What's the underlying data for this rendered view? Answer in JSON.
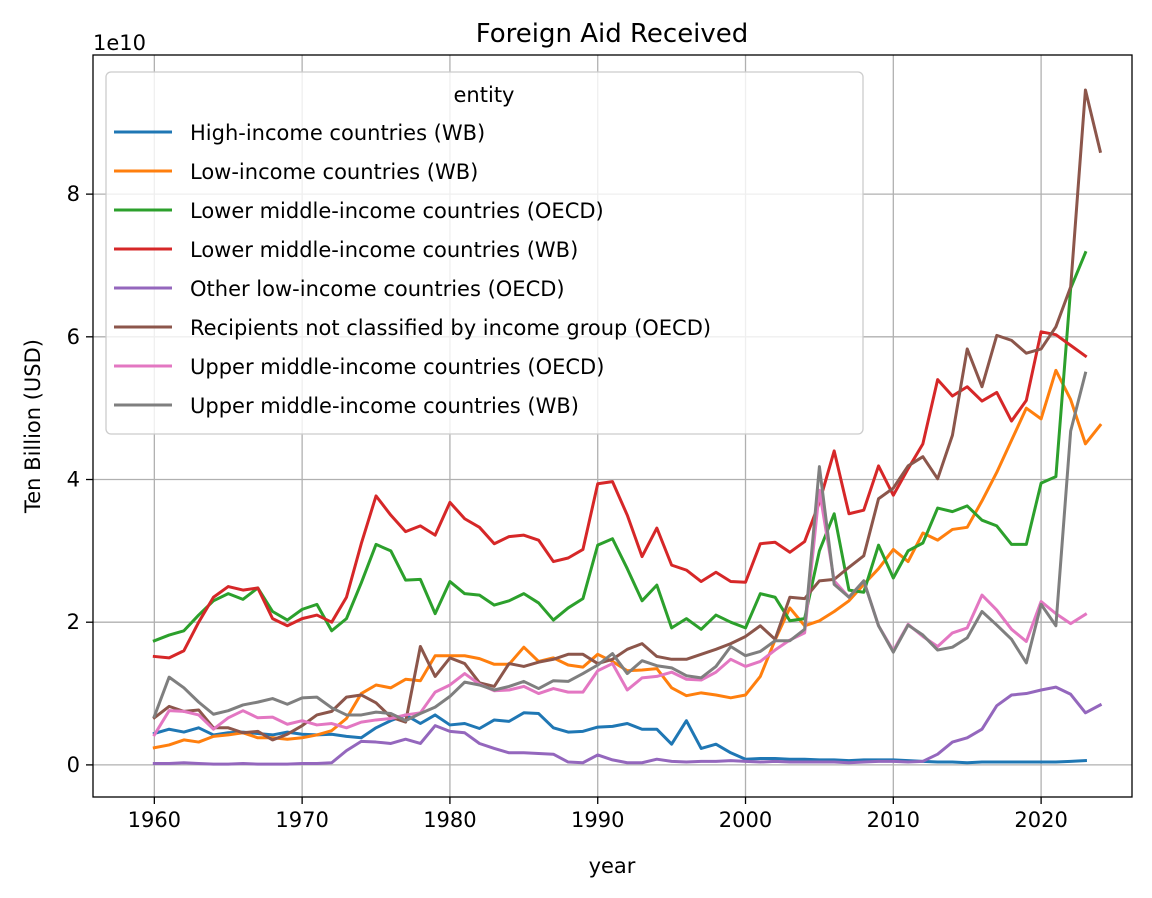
{
  "chart_data": {
    "type": "line",
    "title": "Foreign Aid Received",
    "xlabel": "year",
    "ylabel": "Ten Billion (USD)",
    "offset_label": "1e10",
    "xlim": [
      1955.85,
      2026.15
    ],
    "ylim": [
      -0.45,
      9.95
    ],
    "xticks": [
      1960,
      1970,
      1980,
      1990,
      2000,
      2010,
      2020
    ],
    "yticks": [
      0,
      2,
      4,
      6,
      8
    ],
    "grid": true,
    "legend": {
      "title": "entity",
      "placement": "upper-left"
    },
    "x_start": 1960,
    "series": [
      {
        "name": "High-income countries (WB)",
        "color": "#1f77b4",
        "values": [
          0.44,
          0.5,
          0.46,
          0.52,
          0.42,
          0.45,
          0.46,
          0.44,
          0.42,
          0.46,
          0.43,
          0.42,
          0.43,
          0.4,
          0.38,
          0.52,
          0.62,
          0.7,
          0.58,
          0.7,
          0.56,
          0.58,
          0.51,
          0.63,
          0.61,
          0.73,
          0.72,
          0.52,
          0.46,
          0.47,
          0.53,
          0.54,
          0.58,
          0.5,
          0.5,
          0.29,
          0.62,
          0.23,
          0.29,
          0.17,
          0.08,
          0.09,
          0.09,
          0.08,
          0.08,
          0.07,
          0.07,
          0.06,
          0.07,
          0.07,
          0.07,
          0.06,
          0.05,
          0.04,
          0.04,
          0.03,
          0.04,
          0.04,
          0.04,
          0.04,
          0.04,
          0.04,
          0.05,
          0.06
        ]
      },
      {
        "name": "Low-income countries (WB)",
        "color": "#ff7f0e",
        "values": [
          0.24,
          0.28,
          0.35,
          0.32,
          0.4,
          0.42,
          0.45,
          0.38,
          0.38,
          0.36,
          0.38,
          0.42,
          0.48,
          0.65,
          1.0,
          1.12,
          1.08,
          1.2,
          1.18,
          1.53,
          1.53,
          1.53,
          1.49,
          1.41,
          1.41,
          1.65,
          1.45,
          1.5,
          1.4,
          1.37,
          1.55,
          1.45,
          1.32,
          1.33,
          1.35,
          1.08,
          0.97,
          1.01,
          0.98,
          0.94,
          0.98,
          1.24,
          1.75,
          2.2,
          1.95,
          2.02,
          2.15,
          2.3,
          2.53,
          2.75,
          3.02,
          2.85,
          3.25,
          3.15,
          3.3,
          3.33,
          3.7,
          4.1,
          4.55,
          5.0,
          4.85,
          5.53,
          5.12,
          4.5,
          4.76
        ]
      },
      {
        "name": "Lower middle-income countries (OECD)",
        "color": "#2ca02c",
        "values": [
          1.74,
          1.82,
          1.88,
          2.1,
          2.3,
          2.4,
          2.32,
          2.48,
          2.15,
          2.03,
          2.18,
          2.25,
          1.88,
          2.05,
          2.55,
          3.09,
          3.0,
          2.59,
          2.6,
          2.12,
          2.57,
          2.4,
          2.38,
          2.24,
          2.3,
          2.4,
          2.27,
          2.03,
          2.2,
          2.33,
          3.08,
          3.17,
          2.75,
          2.3,
          2.52,
          1.92,
          2.05,
          1.9,
          2.1,
          2.0,
          1.92,
          2.4,
          2.35,
          2.02,
          2.05,
          3.0,
          3.52,
          2.45,
          2.42,
          3.08,
          2.62,
          3.0,
          3.11,
          3.6,
          3.55,
          3.63,
          3.43,
          3.35,
          3.09,
          3.09,
          3.95,
          4.04,
          6.68,
          7.18
        ]
      },
      {
        "name": "Lower middle-income countries (WB)",
        "color": "#d62728",
        "values": [
          1.52,
          1.5,
          1.6,
          2.0,
          2.35,
          2.5,
          2.45,
          2.48,
          2.05,
          1.95,
          2.05,
          2.1,
          2.0,
          2.35,
          3.1,
          3.77,
          3.5,
          3.27,
          3.35,
          3.22,
          3.68,
          3.45,
          3.33,
          3.1,
          3.2,
          3.22,
          3.15,
          2.85,
          2.9,
          3.02,
          3.94,
          3.97,
          3.5,
          2.92,
          3.32,
          2.8,
          2.73,
          2.57,
          2.7,
          2.57,
          2.56,
          3.1,
          3.12,
          2.98,
          3.13,
          3.68,
          4.4,
          3.52,
          3.57,
          4.19,
          3.78,
          4.15,
          4.5,
          5.4,
          5.17,
          5.3,
          5.1,
          5.22,
          4.82,
          5.11,
          6.07,
          6.03,
          5.88,
          5.73
        ]
      },
      {
        "name": "Other low-income countries (OECD)",
        "color": "#9467bd",
        "values": [
          0.02,
          0.02,
          0.03,
          0.02,
          0.01,
          0.01,
          0.02,
          0.01,
          0.01,
          0.01,
          0.02,
          0.02,
          0.03,
          0.2,
          0.33,
          0.32,
          0.3,
          0.36,
          0.3,
          0.55,
          0.47,
          0.45,
          0.3,
          0.23,
          0.17,
          0.17,
          0.16,
          0.15,
          0.04,
          0.03,
          0.14,
          0.07,
          0.03,
          0.03,
          0.08,
          0.05,
          0.04,
          0.05,
          0.05,
          0.06,
          0.05,
          0.04,
          0.05,
          0.04,
          0.04,
          0.04,
          0.04,
          0.03,
          0.04,
          0.05,
          0.05,
          0.04,
          0.05,
          0.15,
          0.32,
          0.38,
          0.5,
          0.83,
          0.98,
          1.0,
          1.05,
          1.09,
          0.99,
          0.73,
          0.84
        ]
      },
      {
        "name": "Recipients not classified by income group (OECD)",
        "color": "#8c564b",
        "values": [
          0.66,
          0.82,
          0.75,
          0.77,
          0.52,
          0.52,
          0.45,
          0.47,
          0.35,
          0.43,
          0.55,
          0.7,
          0.75,
          0.95,
          0.98,
          0.87,
          0.67,
          0.6,
          1.66,
          1.24,
          1.5,
          1.42,
          1.15,
          1.1,
          1.42,
          1.38,
          1.44,
          1.48,
          1.55,
          1.55,
          1.42,
          1.48,
          1.62,
          1.7,
          1.52,
          1.48,
          1.48,
          1.55,
          1.62,
          1.7,
          1.8,
          1.95,
          1.76,
          2.35,
          2.33,
          2.58,
          2.6,
          2.77,
          2.93,
          3.73,
          3.88,
          4.19,
          4.32,
          4.01,
          4.62,
          5.83,
          5.3,
          6.02,
          5.95,
          5.77,
          5.83,
          6.14,
          6.7,
          9.46,
          8.6
        ]
      },
      {
        "name": "Upper middle-income countries (OECD)",
        "color": "#e377c2",
        "values": [
          0.42,
          0.76,
          0.75,
          0.7,
          0.5,
          0.66,
          0.76,
          0.66,
          0.67,
          0.57,
          0.62,
          0.56,
          0.58,
          0.52,
          0.6,
          0.63,
          0.65,
          0.7,
          0.73,
          1.02,
          1.12,
          1.28,
          1.13,
          1.04,
          1.05,
          1.1,
          1.0,
          1.07,
          1.02,
          1.02,
          1.32,
          1.42,
          1.05,
          1.22,
          1.24,
          1.3,
          1.2,
          1.19,
          1.3,
          1.48,
          1.38,
          1.45,
          1.61,
          1.75,
          1.85,
          3.85,
          2.58,
          2.35,
          2.58,
          1.95,
          1.6,
          1.97,
          1.8,
          1.66,
          1.85,
          1.92,
          2.38,
          2.17,
          1.9,
          1.73,
          2.29,
          2.12,
          1.98,
          2.11
        ]
      },
      {
        "name": "Upper middle-income countries (WB)",
        "color": "#7f7f7f",
        "values": [
          0.68,
          1.23,
          1.08,
          0.88,
          0.71,
          0.76,
          0.84,
          0.88,
          0.93,
          0.85,
          0.94,
          0.95,
          0.8,
          0.7,
          0.7,
          0.74,
          0.72,
          0.62,
          0.72,
          0.81,
          0.96,
          1.16,
          1.12,
          1.05,
          1.1,
          1.17,
          1.07,
          1.18,
          1.17,
          1.28,
          1.4,
          1.56,
          1.28,
          1.46,
          1.39,
          1.36,
          1.25,
          1.22,
          1.38,
          1.66,
          1.53,
          1.59,
          1.74,
          1.74,
          1.9,
          4.18,
          2.53,
          2.35,
          2.58,
          1.95,
          1.58,
          1.96,
          1.82,
          1.61,
          1.65,
          1.78,
          2.15,
          1.96,
          1.76,
          1.43,
          2.25,
          1.95,
          4.68,
          5.49
        ]
      }
    ]
  }
}
